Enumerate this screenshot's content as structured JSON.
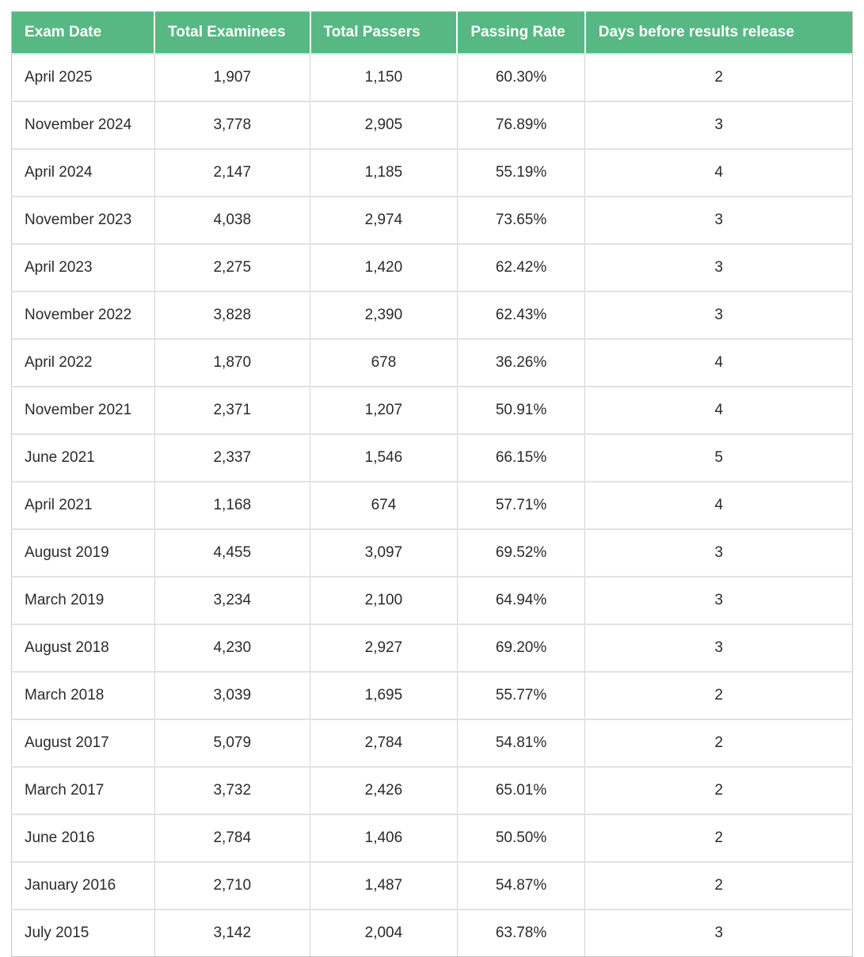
{
  "colors": {
    "header_bg": "#57b884",
    "header_text": "#ffffff",
    "body_text": "#2b2b2b",
    "border": "#c6c6c6",
    "row_divider": "#e2e2e2"
  },
  "table": {
    "columns": [
      "Exam Date",
      "Total Examinees",
      "Total Passers",
      "Passing Rate",
      "Days before results release"
    ],
    "rows": [
      [
        "April 2025",
        "1,907",
        "1,150",
        "60.30%",
        "2"
      ],
      [
        "November 2024",
        "3,778",
        "2,905",
        "76.89%",
        "3"
      ],
      [
        "April 2024",
        "2,147",
        "1,185",
        "55.19%",
        "4"
      ],
      [
        "November 2023",
        "4,038",
        "2,974",
        "73.65%",
        "3"
      ],
      [
        "April 2023",
        "2,275",
        "1,420",
        "62.42%",
        "3"
      ],
      [
        "November 2022",
        "3,828",
        "2,390",
        "62.43%",
        "3"
      ],
      [
        "April 2022",
        "1,870",
        "678",
        "36.26%",
        "4"
      ],
      [
        "November 2021",
        "2,371",
        "1,207",
        "50.91%",
        "4"
      ],
      [
        "June 2021",
        "2,337",
        "1,546",
        "66.15%",
        "5"
      ],
      [
        "April 2021",
        "1,168",
        "674",
        "57.71%",
        "4"
      ],
      [
        "August 2019",
        "4,455",
        "3,097",
        "69.52%",
        "3"
      ],
      [
        "March 2019",
        "3,234",
        "2,100",
        "64.94%",
        "3"
      ],
      [
        "August 2018",
        "4,230",
        "2,927",
        "69.20%",
        "3"
      ],
      [
        "March 2018",
        "3,039",
        "1,695",
        "55.77%",
        "2"
      ],
      [
        "August 2017",
        "5,079",
        "2,784",
        "54.81%",
        "2"
      ],
      [
        "March 2017",
        "3,732",
        "2,426",
        "65.01%",
        "2"
      ],
      [
        "June 2016",
        "2,784",
        "1,406",
        "50.50%",
        "2"
      ],
      [
        "January 2016",
        "2,710",
        "1,487",
        "54.87%",
        "2"
      ],
      [
        "July 2015",
        "3,142",
        "2,004",
        "63.78%",
        "3"
      ]
    ]
  },
  "chart_data": {
    "type": "table",
    "title": "",
    "columns": [
      "Exam Date",
      "Total Examinees",
      "Total Passers",
      "Passing Rate",
      "Days before results release"
    ],
    "categories": [
      "April 2025",
      "November 2024",
      "April 2024",
      "November 2023",
      "April 2023",
      "November 2022",
      "April 2022",
      "November 2021",
      "June 2021",
      "April 2021",
      "August 2019",
      "March 2019",
      "August 2018",
      "March 2018",
      "August 2017",
      "March 2017",
      "June 2016",
      "January 2016",
      "July 2015"
    ],
    "series": [
      {
        "name": "Total Examinees",
        "values": [
          1907,
          3778,
          2147,
          4038,
          2275,
          3828,
          1870,
          2371,
          2337,
          1168,
          4455,
          3234,
          4230,
          3039,
          5079,
          3732,
          2784,
          2710,
          3142
        ]
      },
      {
        "name": "Total Passers",
        "values": [
          1150,
          2905,
          1185,
          2974,
          1420,
          2390,
          678,
          1207,
          1546,
          674,
          3097,
          2100,
          2927,
          1695,
          2784,
          2426,
          1406,
          1487,
          2004
        ]
      },
      {
        "name": "Passing Rate (%)",
        "values": [
          60.3,
          76.89,
          55.19,
          73.65,
          62.42,
          62.43,
          36.26,
          50.91,
          66.15,
          57.71,
          69.52,
          64.94,
          69.2,
          55.77,
          54.81,
          65.01,
          50.5,
          54.87,
          63.78
        ]
      },
      {
        "name": "Days before results release",
        "values": [
          2,
          3,
          4,
          3,
          3,
          3,
          4,
          4,
          5,
          4,
          3,
          3,
          3,
          2,
          2,
          2,
          2,
          2,
          3
        ]
      }
    ]
  }
}
